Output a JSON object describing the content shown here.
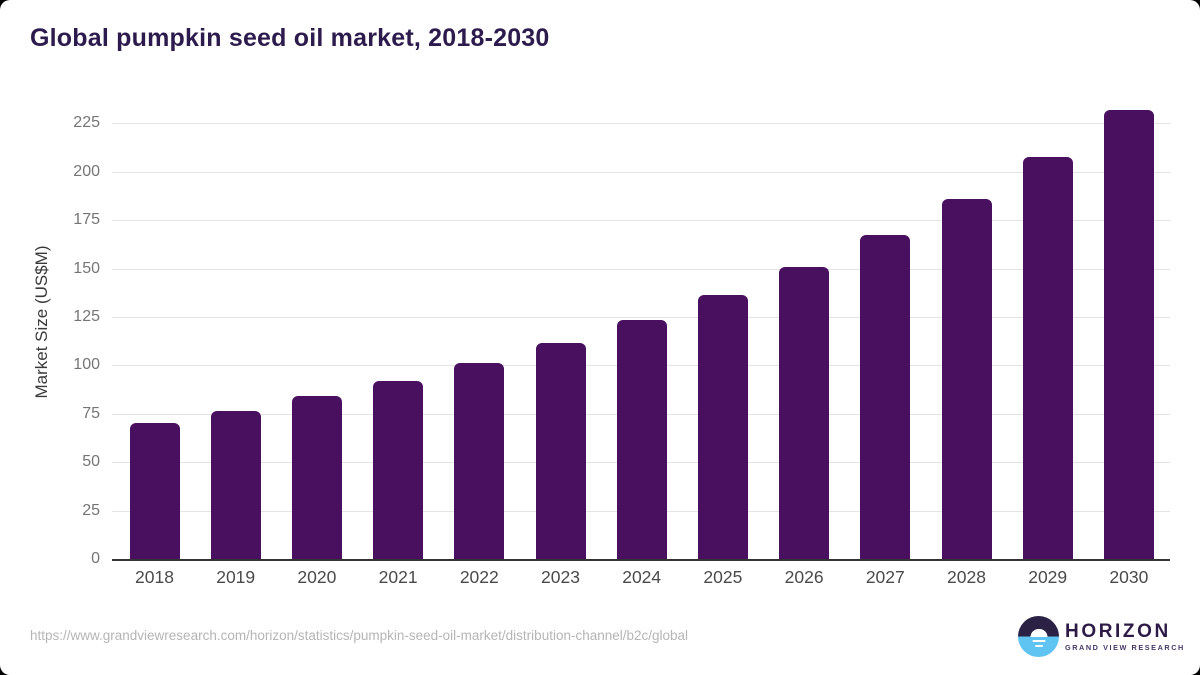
{
  "title": "Global pumpkin seed oil market, 2018-2030",
  "chart_data": {
    "type": "bar",
    "title": "Global pumpkin seed oil market, 2018-2030",
    "categories": [
      "2018",
      "2019",
      "2020",
      "2021",
      "2022",
      "2023",
      "2024",
      "2025",
      "2026",
      "2027",
      "2028",
      "2029",
      "2030"
    ],
    "values": [
      70,
      76.5,
      84,
      92,
      101,
      111.5,
      123.5,
      136.5,
      151,
      167.5,
      186,
      207.5,
      232
    ],
    "xlabel": "",
    "ylabel": "Market Size (US$M)",
    "ylim": [
      0,
      237.5
    ],
    "yticks": [
      0,
      25,
      50,
      75,
      100,
      125,
      150,
      175,
      200,
      225
    ],
    "grid": true,
    "legend": false,
    "bar_color": "#48105e"
  },
  "colors": {
    "bar": "#48105e",
    "title": "#2d1b4e",
    "axis_line": "#333333",
    "gridline": "#e4e4e4",
    "ytick_text": "#757575",
    "xtick_text": "#4a4a4a",
    "url_text": "#b5b5b5",
    "logo_dark": "#2b2144",
    "logo_blue": "#5fc4f1"
  },
  "footer": {
    "source_url": "https://www.grandviewresearch.com/horizon/statistics/pumpkin-seed-oil-market/distribution-channel/b2c/global",
    "logo_name": "HORIZON",
    "logo_subtitle": "GRAND VIEW RESEARCH"
  }
}
